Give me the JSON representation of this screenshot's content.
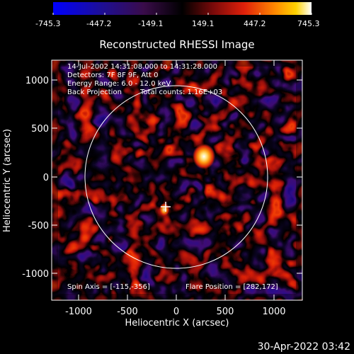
{
  "colorbar": {
    "ticks": [
      "-745.3",
      "-447.2",
      "-149.1",
      "149.1",
      "447.2",
      "745.3"
    ],
    "stops": [
      "#0000ff",
      "#2a0a8a",
      "#3a0b3a",
      "#000000",
      "#6a0a0a",
      "#d11a0a",
      "#ff7a00",
      "#ffd200",
      "#ffffff"
    ]
  },
  "plot": {
    "title": "Reconstructed RHESSI Image",
    "xlabel": "Heliocentric X (arcsec)",
    "ylabel": "Heliocentric Y (arcsec)",
    "xticks": [
      "-1000",
      "-500",
      "0",
      "500",
      "1000"
    ],
    "yticks": [
      "1000",
      "500",
      "0",
      "-500",
      "-1000"
    ]
  },
  "annotations": {
    "time": "14-Jul-2002 14:31:08.000 to 14:31:28.000",
    "detectors": "Detectors: 7F 8F 9F, Att 0",
    "energy": "Energy Range: 6.0 - 12.0 keV",
    "method": "Back Projection",
    "counts": "Total counts: 1.16E+03",
    "spin_axis": "Spin Axis = [-115,-356]",
    "flare_position": "Flare Position = [282,172]"
  },
  "footer": {
    "date": "30-Apr-2022 03:42"
  }
}
